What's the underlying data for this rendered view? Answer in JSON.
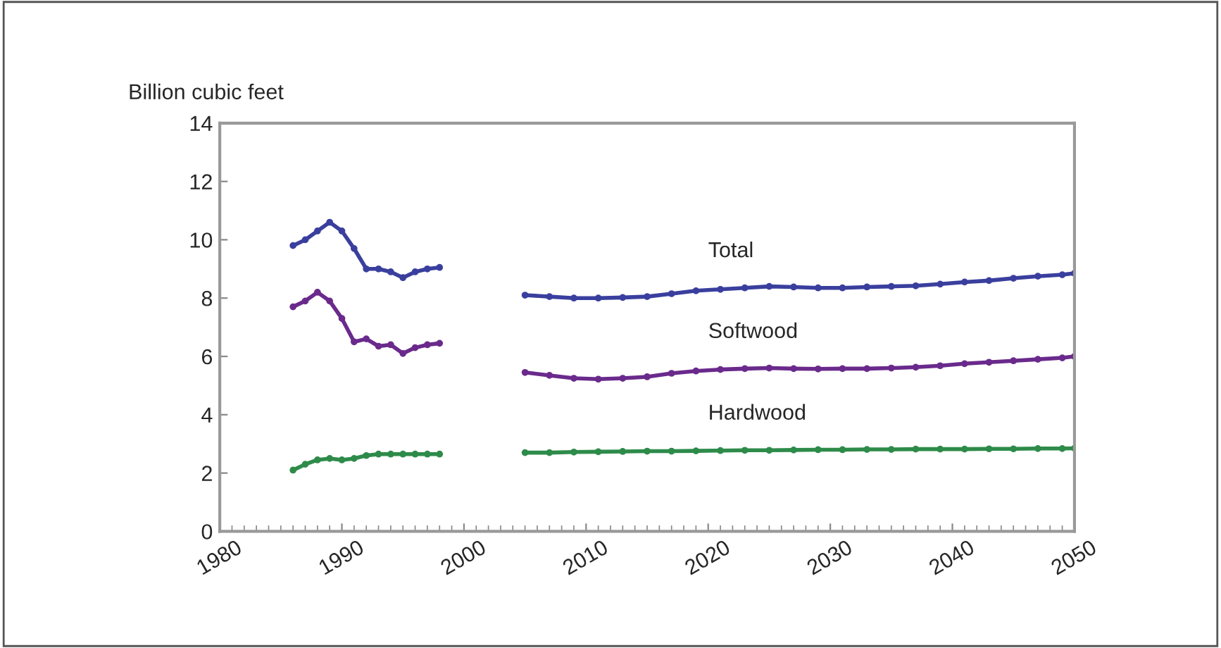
{
  "chart_data": {
    "type": "line",
    "ylabel": "Billion cubic feet",
    "xlim": [
      1980,
      2050
    ],
    "xticks": [
      1980,
      1990,
      2000,
      2010,
      2020,
      2030,
      2040,
      2050
    ],
    "ylim": [
      0,
      14
    ],
    "yticks": [
      0,
      2,
      4,
      6,
      8,
      10,
      12,
      14
    ],
    "grid": false,
    "legend": false,
    "marker": "circle",
    "line_style": "solid",
    "x": [
      1986,
      1987,
      1988,
      1989,
      1990,
      1991,
      1992,
      1993,
      1994,
      1995,
      1996,
      1997,
      1998,
      2000,
      2005,
      2007,
      2009,
      2011,
      2013,
      2015,
      2017,
      2019,
      2021,
      2023,
      2025,
      2027,
      2029,
      2031,
      2033,
      2035,
      2037,
      2039,
      2041,
      2043,
      2045,
      2047,
      2049,
      2050
    ],
    "series": [
      {
        "name": "Total",
        "color": "#3a3f9e",
        "values": [
          9.8,
          10.0,
          10.3,
          10.6,
          10.3,
          9.7,
          9.0,
          9.0,
          8.9,
          8.7,
          8.9,
          9.0,
          9.05,
          null,
          8.1,
          8.05,
          8.0,
          8.0,
          8.02,
          8.05,
          8.15,
          8.25,
          8.3,
          8.35,
          8.4,
          8.38,
          8.35,
          8.35,
          8.38,
          8.4,
          8.42,
          8.48,
          8.55,
          8.6,
          8.68,
          8.75,
          8.8,
          8.85
        ]
      },
      {
        "name": "Softwood",
        "color": "#6a2a8c",
        "values": [
          7.7,
          7.9,
          8.2,
          7.9,
          7.3,
          6.5,
          6.6,
          6.35,
          6.4,
          6.1,
          6.3,
          6.4,
          6.45,
          null,
          5.45,
          5.35,
          5.25,
          5.22,
          5.25,
          5.3,
          5.42,
          5.5,
          5.55,
          5.58,
          5.6,
          5.58,
          5.57,
          5.58,
          5.58,
          5.6,
          5.63,
          5.68,
          5.75,
          5.8,
          5.85,
          5.9,
          5.95,
          6.0
        ]
      },
      {
        "name": "Hardwood",
        "color": "#2e8b4a",
        "values": [
          2.1,
          2.3,
          2.45,
          2.5,
          2.45,
          2.5,
          2.6,
          2.65,
          2.65,
          2.65,
          2.65,
          2.65,
          2.65,
          null,
          2.7,
          2.7,
          2.72,
          2.73,
          2.74,
          2.75,
          2.75,
          2.76,
          2.77,
          2.78,
          2.78,
          2.79,
          2.8,
          2.8,
          2.81,
          2.81,
          2.82,
          2.82,
          2.82,
          2.83,
          2.83,
          2.84,
          2.84,
          2.85
        ]
      }
    ]
  }
}
